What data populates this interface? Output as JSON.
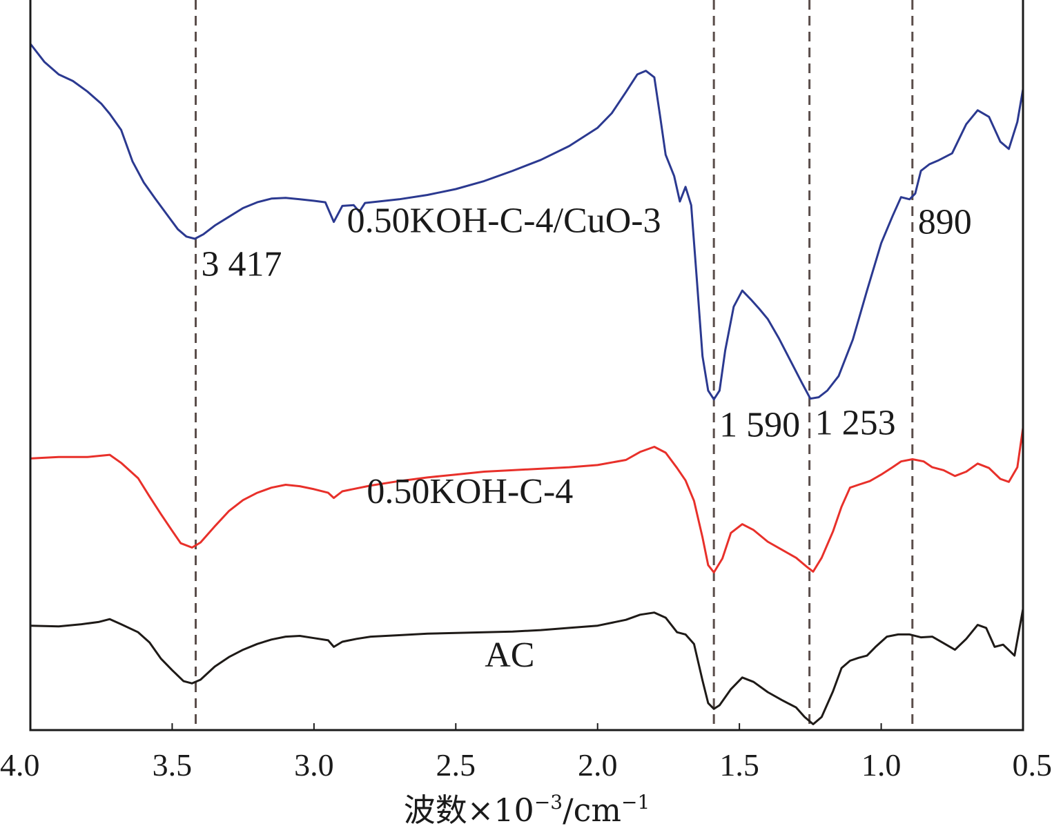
{
  "chart_data": {
    "type": "line",
    "title": "",
    "xlabel": "波数×10",
    "xlabel_exp": "−3",
    "xlabel_unit": "/cm",
    "xlabel_unit_exp": "−1",
    "ylabel": "",
    "xlim": [
      4.0,
      0.5
    ],
    "x_reversed": true,
    "x_ticks": [
      4.0,
      3.5,
      3.0,
      2.5,
      2.0,
      1.5,
      1.0,
      0.5
    ],
    "x_tick_labels": [
      "4.0",
      "3.5",
      "3.0",
      "2.5",
      "2.0",
      "1.5",
      "1.0",
      "0.5"
    ],
    "ylim": [
      0,
      100
    ],
    "y_ticks_shown": false,
    "grid": false,
    "reference_lines": [
      {
        "x": 3.417,
        "style": "dashed"
      },
      {
        "x": 1.59,
        "style": "dashed"
      },
      {
        "x": 1.253,
        "style": "dashed"
      },
      {
        "x": 0.89,
        "style": "dashed"
      }
    ],
    "annotations": [
      {
        "text": "3 417",
        "x": 3.417,
        "series": "0.50KOH-C-4/CuO-3"
      },
      {
        "text": "1 590",
        "x": 1.59,
        "series": "0.50KOH-C-4/CuO-3"
      },
      {
        "text": "1 253",
        "x": 1.253,
        "series": "0.50KOH-C-4/CuO-3"
      },
      {
        "text": "890",
        "x": 0.89,
        "series": "0.50KOH-C-4/CuO-3"
      }
    ],
    "series": [
      {
        "name": "0.50KOH-C-4/CuO-3",
        "color": "#2b3990",
        "points": [
          [
            4.0,
            94.0
          ],
          [
            3.95,
            91.5
          ],
          [
            3.9,
            89.8
          ],
          [
            3.85,
            88.9
          ],
          [
            3.8,
            87.5
          ],
          [
            3.75,
            85.8
          ],
          [
            3.72,
            84.4
          ],
          [
            3.68,
            82.2
          ],
          [
            3.64,
            77.9
          ],
          [
            3.6,
            75.0
          ],
          [
            3.56,
            72.8
          ],
          [
            3.52,
            70.7
          ],
          [
            3.48,
            68.6
          ],
          [
            3.45,
            67.6
          ],
          [
            3.42,
            67.3
          ],
          [
            3.39,
            67.9
          ],
          [
            3.35,
            69.1
          ],
          [
            3.3,
            70.3
          ],
          [
            3.25,
            71.5
          ],
          [
            3.2,
            72.3
          ],
          [
            3.15,
            72.8
          ],
          [
            3.1,
            72.9
          ],
          [
            3.05,
            72.7
          ],
          [
            3.0,
            72.5
          ],
          [
            2.96,
            72.3
          ],
          [
            2.93,
            69.6
          ],
          [
            2.9,
            71.8
          ],
          [
            2.86,
            71.9
          ],
          [
            2.84,
            71.0
          ],
          [
            2.82,
            72.2
          ],
          [
            2.75,
            72.5
          ],
          [
            2.7,
            72.7
          ],
          [
            2.6,
            73.3
          ],
          [
            2.5,
            74.1
          ],
          [
            2.4,
            75.2
          ],
          [
            2.3,
            76.6
          ],
          [
            2.2,
            78.1
          ],
          [
            2.1,
            80.0
          ],
          [
            2.0,
            82.5
          ],
          [
            1.95,
            84.5
          ],
          [
            1.9,
            87.4
          ],
          [
            1.86,
            89.8
          ],
          [
            1.83,
            90.3
          ],
          [
            1.8,
            89.4
          ],
          [
            1.78,
            84.2
          ],
          [
            1.76,
            78.8
          ],
          [
            1.73,
            75.9
          ],
          [
            1.71,
            72.4
          ],
          [
            1.69,
            74.4
          ],
          [
            1.67,
            71.9
          ],
          [
            1.65,
            61.7
          ],
          [
            1.63,
            51.2
          ],
          [
            1.61,
            46.5
          ],
          [
            1.59,
            45.3
          ],
          [
            1.57,
            46.5
          ],
          [
            1.55,
            52.0
          ],
          [
            1.52,
            58.0
          ],
          [
            1.49,
            60.2
          ],
          [
            1.46,
            59.0
          ],
          [
            1.43,
            57.7
          ],
          [
            1.4,
            56.3
          ],
          [
            1.36,
            53.6
          ],
          [
            1.32,
            50.6
          ],
          [
            1.28,
            47.6
          ],
          [
            1.25,
            45.4
          ],
          [
            1.22,
            45.6
          ],
          [
            1.19,
            46.5
          ],
          [
            1.15,
            48.5
          ],
          [
            1.1,
            53.5
          ],
          [
            1.05,
            60.2
          ],
          [
            1.0,
            66.7
          ],
          [
            0.96,
            70.4
          ],
          [
            0.93,
            73.0
          ],
          [
            0.9,
            72.7
          ],
          [
            0.88,
            73.5
          ],
          [
            0.86,
            76.6
          ],
          [
            0.83,
            77.5
          ],
          [
            0.8,
            78.0
          ],
          [
            0.75,
            79.0
          ],
          [
            0.7,
            83.0
          ],
          [
            0.66,
            84.9
          ],
          [
            0.62,
            84.0
          ],
          [
            0.58,
            80.6
          ],
          [
            0.55,
            79.6
          ],
          [
            0.52,
            83.3
          ],
          [
            0.5,
            87.8
          ]
        ]
      },
      {
        "name": "0.50KOH-C-4",
        "color": "#e8302a",
        "points": [
          [
            4.0,
            37.2
          ],
          [
            3.9,
            37.4
          ],
          [
            3.8,
            37.4
          ],
          [
            3.72,
            37.7
          ],
          [
            3.68,
            36.6
          ],
          [
            3.62,
            34.5
          ],
          [
            3.58,
            32.0
          ],
          [
            3.54,
            29.6
          ],
          [
            3.5,
            27.3
          ],
          [
            3.47,
            25.6
          ],
          [
            3.43,
            25.0
          ],
          [
            3.4,
            25.7
          ],
          [
            3.35,
            27.9
          ],
          [
            3.3,
            30.0
          ],
          [
            3.25,
            31.5
          ],
          [
            3.2,
            32.5
          ],
          [
            3.15,
            33.2
          ],
          [
            3.1,
            33.6
          ],
          [
            3.05,
            33.4
          ],
          [
            3.0,
            33.0
          ],
          [
            2.95,
            32.5
          ],
          [
            2.93,
            31.8
          ],
          [
            2.9,
            32.7
          ],
          [
            2.8,
            33.5
          ],
          [
            2.7,
            34.1
          ],
          [
            2.6,
            34.6
          ],
          [
            2.5,
            35.0
          ],
          [
            2.4,
            35.4
          ],
          [
            2.3,
            35.6
          ],
          [
            2.2,
            35.8
          ],
          [
            2.1,
            36.0
          ],
          [
            2.0,
            36.3
          ],
          [
            1.9,
            37.0
          ],
          [
            1.85,
            38.1
          ],
          [
            1.8,
            38.8
          ],
          [
            1.76,
            38.0
          ],
          [
            1.72,
            35.9
          ],
          [
            1.69,
            34.2
          ],
          [
            1.66,
            31.4
          ],
          [
            1.63,
            26.4
          ],
          [
            1.61,
            22.6
          ],
          [
            1.59,
            21.6
          ],
          [
            1.56,
            23.5
          ],
          [
            1.53,
            27.0
          ],
          [
            1.49,
            28.2
          ],
          [
            1.45,
            27.4
          ],
          [
            1.4,
            25.8
          ],
          [
            1.35,
            24.7
          ],
          [
            1.3,
            23.6
          ],
          [
            1.26,
            22.3
          ],
          [
            1.24,
            21.7
          ],
          [
            1.21,
            23.6
          ],
          [
            1.17,
            27.2
          ],
          [
            1.14,
            30.6
          ],
          [
            1.11,
            33.2
          ],
          [
            1.08,
            33.6
          ],
          [
            1.04,
            34.1
          ],
          [
            1.0,
            35.0
          ],
          [
            0.96,
            36.0
          ],
          [
            0.93,
            36.8
          ],
          [
            0.89,
            37.1
          ],
          [
            0.85,
            36.8
          ],
          [
            0.82,
            36.0
          ],
          [
            0.78,
            35.6
          ],
          [
            0.74,
            34.8
          ],
          [
            0.7,
            35.4
          ],
          [
            0.66,
            36.5
          ],
          [
            0.62,
            35.9
          ],
          [
            0.58,
            34.4
          ],
          [
            0.55,
            34.0
          ],
          [
            0.52,
            36.0
          ],
          [
            0.5,
            41.4
          ]
        ]
      },
      {
        "name": "AC",
        "color": "#1e1a17",
        "points": [
          [
            4.0,
            14.3
          ],
          [
            3.9,
            14.2
          ],
          [
            3.82,
            14.5
          ],
          [
            3.76,
            14.8
          ],
          [
            3.72,
            15.2
          ],
          [
            3.68,
            14.5
          ],
          [
            3.62,
            13.4
          ],
          [
            3.58,
            12.0
          ],
          [
            3.54,
            9.8
          ],
          [
            3.5,
            8.2
          ],
          [
            3.46,
            6.7
          ],
          [
            3.43,
            6.4
          ],
          [
            3.4,
            6.9
          ],
          [
            3.35,
            8.7
          ],
          [
            3.3,
            10.0
          ],
          [
            3.25,
            11.0
          ],
          [
            3.2,
            11.8
          ],
          [
            3.15,
            12.4
          ],
          [
            3.1,
            12.8
          ],
          [
            3.05,
            12.9
          ],
          [
            3.0,
            12.6
          ],
          [
            2.95,
            12.3
          ],
          [
            2.93,
            11.4
          ],
          [
            2.9,
            12.1
          ],
          [
            2.85,
            12.5
          ],
          [
            2.8,
            12.8
          ],
          [
            2.7,
            13.0
          ],
          [
            2.6,
            13.2
          ],
          [
            2.5,
            13.3
          ],
          [
            2.4,
            13.4
          ],
          [
            2.3,
            13.5
          ],
          [
            2.2,
            13.7
          ],
          [
            2.1,
            14.0
          ],
          [
            2.0,
            14.3
          ],
          [
            1.9,
            15.1
          ],
          [
            1.85,
            15.8
          ],
          [
            1.8,
            16.1
          ],
          [
            1.76,
            15.4
          ],
          [
            1.72,
            13.4
          ],
          [
            1.69,
            13.1
          ],
          [
            1.66,
            11.8
          ],
          [
            1.63,
            6.8
          ],
          [
            1.61,
            3.7
          ],
          [
            1.59,
            2.9
          ],
          [
            1.57,
            3.4
          ],
          [
            1.53,
            5.6
          ],
          [
            1.49,
            7.2
          ],
          [
            1.45,
            6.6
          ],
          [
            1.4,
            5.2
          ],
          [
            1.35,
            4.1
          ],
          [
            1.3,
            3.1
          ],
          [
            1.27,
            1.8
          ],
          [
            1.24,
            0.8
          ],
          [
            1.21,
            1.8
          ],
          [
            1.17,
            5.3
          ],
          [
            1.14,
            8.5
          ],
          [
            1.11,
            9.5
          ],
          [
            1.08,
            9.9
          ],
          [
            1.05,
            10.2
          ],
          [
            1.02,
            11.4
          ],
          [
            0.98,
            12.8
          ],
          [
            0.94,
            13.1
          ],
          [
            0.9,
            13.1
          ],
          [
            0.86,
            12.7
          ],
          [
            0.82,
            12.8
          ],
          [
            0.78,
            11.9
          ],
          [
            0.74,
            11.0
          ],
          [
            0.7,
            12.5
          ],
          [
            0.66,
            14.4
          ],
          [
            0.63,
            14.0
          ],
          [
            0.6,
            11.4
          ],
          [
            0.57,
            11.7
          ],
          [
            0.53,
            10.2
          ],
          [
            0.5,
            16.6
          ]
        ]
      }
    ],
    "series_labels": [
      {
        "text": "0.50KOH-C-4/CuO-3",
        "x": 2.33,
        "y": 68.2
      },
      {
        "text": "0.50KOH-C-4",
        "x": 2.45,
        "y": 31.1
      },
      {
        "text": "AC",
        "x": 2.31,
        "y": 8.7
      }
    ]
  }
}
